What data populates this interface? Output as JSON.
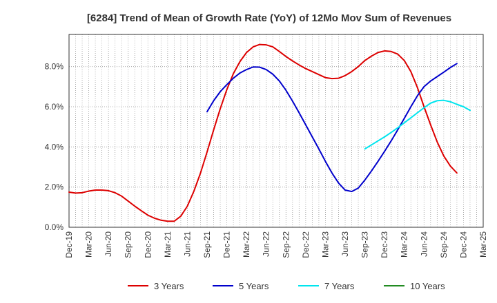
{
  "chart_data": {
    "type": "line",
    "title": "[6284]  Trend of Mean of Growth Rate (YoY) of 12Mo Mov Sum of Revenues",
    "xlabel": "",
    "ylabel": "",
    "x_ticks": [
      "Dec-19",
      "Mar-20",
      "Jun-20",
      "Sep-20",
      "Dec-20",
      "Mar-21",
      "Jun-21",
      "Sep-21",
      "Dec-21",
      "Mar-22",
      "Jun-22",
      "Sep-22",
      "Dec-22",
      "Mar-23",
      "Jun-23",
      "Sep-23",
      "Dec-23",
      "Mar-24",
      "Jun-24",
      "Sep-24",
      "Dec-24",
      "Mar-25"
    ],
    "y_ticks": [
      "0.0%",
      "2.0%",
      "4.0%",
      "6.0%",
      "8.0%"
    ],
    "y_tick_values": [
      0,
      2,
      4,
      6,
      8
    ],
    "ylim": [
      0,
      9.6
    ],
    "x_range_months": [
      0,
      63
    ],
    "grid": true,
    "legend_position": "bottom",
    "series": [
      {
        "name": "3 Years",
        "color": "#dd0000",
        "start_month": 0,
        "values": [
          1.75,
          1.7,
          1.72,
          1.8,
          1.85,
          1.85,
          1.82,
          1.72,
          1.55,
          1.3,
          1.05,
          0.82,
          0.6,
          0.45,
          0.35,
          0.3,
          0.3,
          0.55,
          1.05,
          1.8,
          2.7,
          3.75,
          4.85,
          5.9,
          6.85,
          7.65,
          8.25,
          8.7,
          8.98,
          9.1,
          9.08,
          8.98,
          8.75,
          8.5,
          8.28,
          8.08,
          7.9,
          7.75,
          7.6,
          7.45,
          7.4,
          7.42,
          7.55,
          7.75,
          8.0,
          8.3,
          8.52,
          8.7,
          8.78,
          8.75,
          8.62,
          8.3,
          7.75,
          6.95,
          6.0,
          5.1,
          4.25,
          3.55,
          3.05,
          2.7
        ]
      },
      {
        "name": "5 Years",
        "color": "#0000cc",
        "start_month": 21,
        "values": [
          5.75,
          6.3,
          6.75,
          7.1,
          7.42,
          7.68,
          7.85,
          7.98,
          7.97,
          7.85,
          7.62,
          7.28,
          6.82,
          6.28,
          5.7,
          5.1,
          4.5,
          3.9,
          3.28,
          2.7,
          2.2,
          1.85,
          1.78,
          1.95,
          2.35,
          2.8,
          3.28,
          3.78,
          4.3,
          4.85,
          5.42,
          6.0,
          6.55,
          7.0,
          7.28,
          7.5,
          7.72,
          7.95,
          8.15
        ]
      },
      {
        "name": "7 Years",
        "color": "#00e5ee",
        "start_month": 45,
        "values": [
          3.9,
          4.1,
          4.3,
          4.5,
          4.72,
          4.95,
          5.2,
          5.45,
          5.7,
          5.95,
          6.18,
          6.3,
          6.32,
          6.25,
          6.12,
          6.0,
          5.82
        ]
      },
      {
        "name": "10 Years",
        "color": "#228b22",
        "start_month": 0,
        "values": []
      }
    ]
  }
}
